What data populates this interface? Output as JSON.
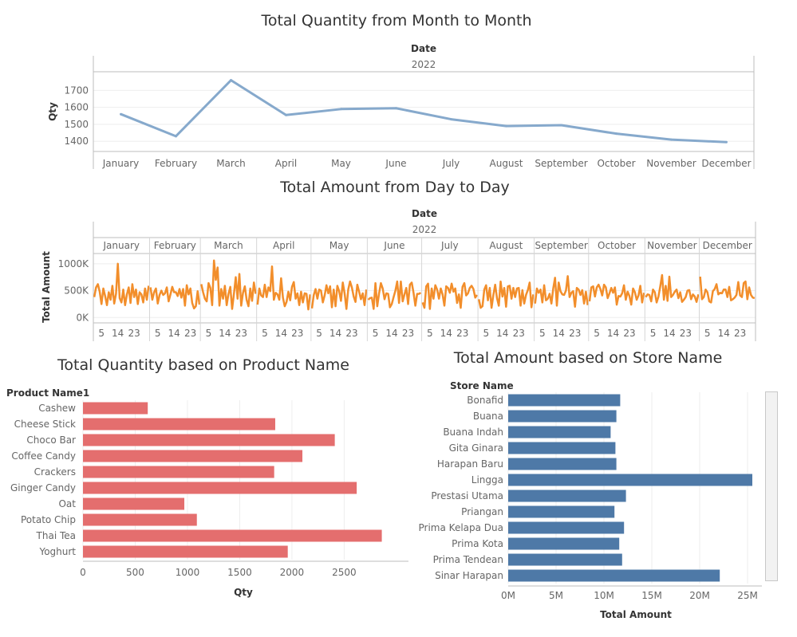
{
  "colors": {
    "monthly_line": "#86a9cc",
    "daily_line": "#f28e2b",
    "product_bar": "#e46e6e",
    "store_bar": "#4e79a7",
    "axis": "#bdbdbd",
    "grid": "#eeeeee",
    "text": "#666666"
  },
  "scroll_icon": "vertical-scrollbar",
  "chart_data": [
    {
      "id": "monthly",
      "type": "line",
      "title": "Total Quantity from Month to Month",
      "header_label": "Date",
      "header_value": "2022",
      "ylabel": "Qty",
      "categories": [
        "January",
        "February",
        "March",
        "April",
        "May",
        "June",
        "July",
        "August",
        "September",
        "October",
        "November",
        "December"
      ],
      "series": [
        {
          "values": [
            1560,
            1430,
            1760,
            1555,
            1590,
            1595,
            1530,
            1490,
            1495,
            1445,
            1410,
            1395
          ]
        }
      ],
      "yticks": [
        1400,
        1500,
        1600,
        1700
      ],
      "ylim": [
        1340,
        1810
      ],
      "grid": true
    },
    {
      "id": "daily",
      "type": "line",
      "title": "Total Amount from Day to Day",
      "header_label": "Date",
      "header_value": "2022",
      "ylabel": "Total Amount",
      "months": [
        "January",
        "February",
        "March",
        "April",
        "May",
        "June",
        "July",
        "August",
        "September",
        "October",
        "November",
        "December"
      ],
      "day_ticks": [
        "5",
        "14",
        "23"
      ],
      "days_in_month": [
        31,
        28,
        31,
        30,
        31,
        30,
        31,
        31,
        30,
        31,
        30,
        31
      ],
      "series": [
        {
          "values": [
            380000,
            560000,
            620000,
            480000,
            250000,
            540000,
            400000,
            230000,
            470000,
            330000,
            590000,
            260000,
            440000,
            1000000,
            360000,
            280000,
            520000,
            230000,
            430000,
            560000,
            270000,
            620000,
            380000,
            520000,
            250000,
            470000,
            430000,
            280000,
            540000,
            330000,
            590000,
            560000,
            330000,
            470000,
            540000,
            260000,
            420000,
            500000,
            420000,
            450000,
            560000,
            300000,
            430000,
            570000,
            470000,
            470000,
            400000,
            530000,
            370000,
            530000,
            220000,
            600000,
            430000,
            540000,
            270000,
            170000,
            210000,
            490000,
            240000,
            620000,
            470000,
            350000,
            300000,
            640000,
            550000,
            230000,
            1060000,
            700000,
            930000,
            220000,
            530000,
            350000,
            590000,
            230000,
            440000,
            570000,
            160000,
            440000,
            750000,
            350000,
            810000,
            220000,
            460000,
            580000,
            330000,
            210000,
            540000,
            310000,
            650000,
            440000,
            240000,
            540000,
            410000,
            380000,
            610000,
            380000,
            560000,
            490000,
            950000,
            330000,
            460000,
            430000,
            330000,
            730000,
            370000,
            210000,
            290000,
            480000,
            320000,
            570000,
            660000,
            350000,
            450000,
            230000,
            480000,
            280000,
            450000,
            440000,
            150000,
            430000,
            170000,
            420000,
            530000,
            350000,
            520000,
            500000,
            280000,
            410000,
            600000,
            450000,
            580000,
            190000,
            520000,
            210000,
            590000,
            490000,
            310000,
            650000,
            450000,
            160000,
            520000,
            670000,
            560000,
            390000,
            290000,
            610000,
            480000,
            340000,
            450000,
            230000,
            520000,
            330000,
            360000,
            370000,
            160000,
            640000,
            210000,
            450000,
            640000,
            540000,
            340000,
            450000,
            440000,
            190000,
            250000,
            380000,
            500000,
            670000,
            270000,
            670000,
            300000,
            430000,
            550000,
            250000,
            610000,
            650000,
            460000,
            220000,
            440000,
            440000,
            460000,
            280000,
            180000,
            580000,
            630000,
            160000,
            540000,
            350000,
            600000,
            520000,
            350000,
            540000,
            430000,
            220000,
            580000,
            550000,
            460000,
            630000,
            480000,
            540000,
            270000,
            430000,
            180000,
            570000,
            640000,
            410000,
            450000,
            550000,
            590000,
            530000,
            370000,
            420000,
            340000,
            180000,
            210000,
            520000,
            600000,
            320000,
            550000,
            180000,
            420000,
            610000,
            360000,
            220000,
            670000,
            390000,
            550000,
            200000,
            580000,
            590000,
            350000,
            550000,
            380000,
            540000,
            550000,
            220000,
            510000,
            260000,
            420000,
            510000,
            650000,
            190000,
            430000,
            260000,
            540000,
            460000,
            520000,
            280000,
            600000,
            320000,
            350000,
            440000,
            260000,
            540000,
            740000,
            220000,
            650000,
            490000,
            430000,
            420000,
            500000,
            770000,
            380000,
            460000,
            490000,
            200000,
            550000,
            520000,
            420000,
            510000,
            260000,
            480000,
            230000,
            300000,
            560000,
            580000,
            390000,
            560000,
            610000,
            530000,
            410000,
            610000,
            560000,
            360000,
            450000,
            550000,
            460000,
            560000,
            240000,
            400000,
            390000,
            450000,
            600000,
            330000,
            480000,
            400000,
            240000,
            540000,
            470000,
            330000,
            410000,
            590000,
            280000,
            460000,
            380000,
            430000,
            420000,
            300000,
            520000,
            470000,
            280000,
            390000,
            580000,
            790000,
            330000,
            590000,
            310000,
            760000,
            380000,
            420000,
            480000,
            520000,
            360000,
            470000,
            290000,
            330000,
            380000,
            500000,
            510000,
            340000,
            430000,
            390000,
            290000,
            430000,
            760000,
            340000,
            380000,
            520000,
            470000,
            300000,
            280000,
            490000,
            530000,
            620000,
            430000,
            460000,
            450000,
            520000,
            520000,
            380000,
            570000,
            320000,
            340000,
            370000,
            420000,
            660000,
            410000,
            380000,
            640000,
            670000,
            340000,
            560000,
            420000,
            370000,
            360000
          ]
        }
      ],
      "yticks": [
        "0K",
        "500K",
        "1000K"
      ],
      "ylim": [
        -100000,
        1190000
      ],
      "grid": true
    },
    {
      "id": "product",
      "type": "bar",
      "orientation": "horizontal",
      "title": "Total Quantity based on Product Name",
      "row_header": "Product Name1",
      "xlabel": "Qty",
      "categories": [
        "Cashew",
        "Cheese Stick",
        "Choco Bar",
        "Coffee Candy",
        "Crackers",
        "Ginger Candy",
        "Oat",
        "Potato Chip",
        "Thai Tea",
        "Yoghurt"
      ],
      "values": [
        620,
        1840,
        2410,
        2100,
        1830,
        2620,
        970,
        1090,
        2860,
        1960
      ],
      "xticks": [
        0,
        500,
        1000,
        1500,
        2000,
        2500
      ],
      "xlim": [
        0,
        3100
      ],
      "grid": true
    },
    {
      "id": "store",
      "type": "bar",
      "orientation": "horizontal",
      "title": "Total Amount based on Store Name",
      "row_header": "Store Name",
      "xlabel": "Total Amount",
      "categories": [
        "Bonafid",
        "Buana",
        "Buana Indah",
        "Gita Ginara",
        "Harapan Baru",
        "Lingga",
        "Prestasi Utama",
        "Priangan",
        "Prima Kelapa Dua",
        "Prima Kota",
        "Prima Tendean",
        "Sinar Harapan"
      ],
      "values": [
        11700000,
        11300000,
        10700000,
        11200000,
        11300000,
        25500000,
        12300000,
        11100000,
        12100000,
        11600000,
        11900000,
        22100000
      ],
      "xticks": [
        "0M",
        "5M",
        "10M",
        "15M",
        "20M",
        "25M"
      ],
      "xtick_values": [
        0,
        5000000,
        10000000,
        15000000,
        20000000,
        25000000
      ],
      "xlim": [
        0,
        26500000
      ],
      "grid": true
    }
  ]
}
